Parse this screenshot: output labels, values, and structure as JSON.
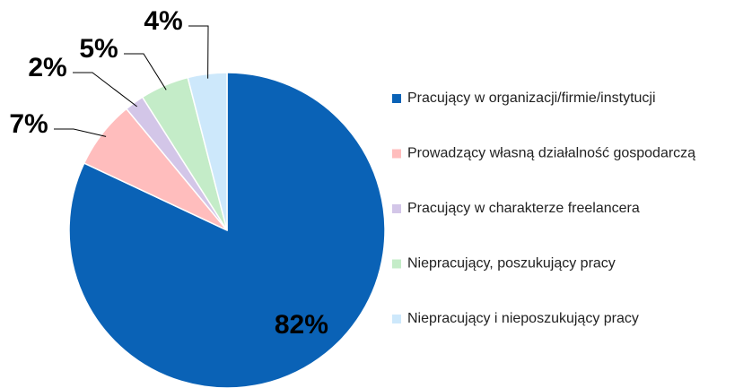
{
  "chart_data": {
    "type": "pie",
    "categories": [
      "Pracujący w organizacji/firmie/instytucji",
      "Prowadzący własną działalność gospodarczą",
      "Pracujący w charakterze freelancera",
      "Niepracujący, poszukujący pracy",
      "Niepracujący i nieposzukujący pracy"
    ],
    "values": [
      82,
      7,
      2,
      5,
      4
    ],
    "value_labels": [
      "82%",
      "7%",
      "2%",
      "5%",
      "4%"
    ],
    "colors": [
      "#0a62b6",
      "#ffbdbd",
      "#d3c6e8",
      "#c4ecc8",
      "#cde8fb"
    ],
    "legend": "right"
  }
}
